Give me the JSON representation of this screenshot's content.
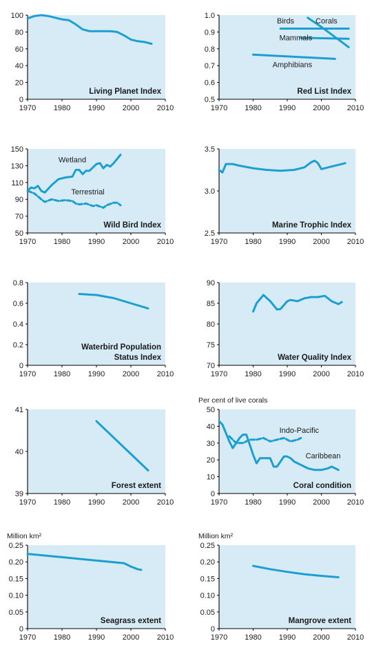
{
  "colors": {
    "panel_fill": "#d6ebf5",
    "line": "#1a9fd0",
    "axis": "#000000",
    "text": "#1a1a1a"
  },
  "chart_data": [
    {
      "type": "line",
      "title": "Living Planet Index",
      "title_lines": [
        "Living Planet Index"
      ],
      "xlim": [
        1970,
        2010
      ],
      "ylim": [
        0,
        100
      ],
      "xticks": [
        "1970",
        "1980",
        "1990",
        "2000",
        "2010"
      ],
      "yticks": [
        "0",
        "20",
        "40",
        "60",
        "80",
        "100"
      ],
      "series": [
        {
          "dashed": false,
          "x": [
            1970,
            1972,
            1974,
            1976,
            1978,
            1980,
            1982,
            1984,
            1986,
            1988,
            1990,
            1992,
            1994,
            1996,
            1998,
            2000,
            2002,
            2004,
            2006
          ],
          "y": [
            96,
            99,
            100,
            99,
            97,
            95,
            94,
            89,
            83,
            81,
            81,
            81,
            81,
            80,
            76,
            71,
            69,
            68,
            66
          ]
        }
      ],
      "annotations": []
    },
    {
      "type": "line",
      "title": "Red List Index",
      "title_lines": [
        "Red List Index"
      ],
      "xlim": [
        1970,
        2010
      ],
      "ylim": [
        0.5,
        1.0
      ],
      "xticks": [
        "1970",
        "1980",
        "1990",
        "2000",
        "2010"
      ],
      "yticks": [
        "0.5",
        "0.6",
        "0.7",
        "0.8",
        "0.9",
        "1.0"
      ],
      "series": [
        {
          "name": "Birds",
          "dashed": false,
          "x": [
            1988,
            2008
          ],
          "y": [
            0.92,
            0.92
          ]
        },
        {
          "name": "Corals",
          "dashed": false,
          "x": [
            1996,
            2000,
            2004,
            2008
          ],
          "y": [
            0.985,
            0.93,
            0.87,
            0.81
          ]
        },
        {
          "name": "Mammals",
          "dashed": false,
          "x": [
            1994,
            2008
          ],
          "y": [
            0.865,
            0.86
          ]
        },
        {
          "name": "Amphibians",
          "dashed": false,
          "x": [
            1980,
            2004
          ],
          "y": [
            0.765,
            0.74
          ]
        }
      ],
      "annotations": [
        {
          "text": "Birds",
          "x": 1989.5,
          "y": 0.95
        },
        {
          "text": "Corals",
          "x": 2001.5,
          "y": 0.95
        },
        {
          "text": "Mammals",
          "x": 1992.5,
          "y": 0.85
        },
        {
          "text": "Amphibians",
          "x": 1991.5,
          "y": 0.69
        }
      ]
    },
    {
      "type": "line",
      "title": "Wild Bird Index",
      "title_lines": [
        "Wild Bird Index"
      ],
      "xlim": [
        1970,
        2010
      ],
      "ylim": [
        50,
        150
      ],
      "xticks": [
        "1970",
        "1980",
        "1990",
        "2000",
        "2010"
      ],
      "yticks": [
        "50",
        "70",
        "90",
        "110",
        "130",
        "150"
      ],
      "series": [
        {
          "name": "Wetland",
          "dashed": false,
          "x": [
            1970,
            1971,
            1972,
            1973,
            1974,
            1975,
            1977,
            1979,
            1981,
            1983,
            1984,
            1985,
            1986,
            1987,
            1988,
            1989,
            1990,
            1991,
            1992,
            1993,
            1994,
            1995,
            1996,
            1997
          ],
          "y": [
            100,
            104,
            103,
            106,
            100,
            98,
            107,
            114,
            116,
            117,
            125,
            125,
            120,
            124,
            124,
            128,
            132,
            133,
            127,
            131,
            129,
            133,
            138,
            143
          ]
        },
        {
          "name": "Terrestrial",
          "dashed": true,
          "x": [
            1970,
            1972,
            1974,
            1975,
            1977,
            1979,
            1981,
            1983,
            1984,
            1985,
            1987,
            1989,
            1990,
            1992,
            1993,
            1995,
            1996,
            1997
          ],
          "y": [
            100,
            97,
            90,
            87,
            90,
            88,
            89,
            88,
            85,
            84,
            85,
            82,
            83,
            80,
            83,
            86,
            86,
            83
          ]
        }
      ],
      "annotations": [
        {
          "text": "Wetland",
          "x": 1983,
          "y": 134
        },
        {
          "text": "Terrestrial",
          "x": 1987.5,
          "y": 96
        }
      ]
    },
    {
      "type": "line",
      "title": "Marine Trophic Index",
      "title_lines": [
        "Marine Trophic Index"
      ],
      "xlim": [
        1970,
        2010
      ],
      "ylim": [
        2.5,
        3.5
      ],
      "xticks": [
        "1970",
        "1980",
        "1990",
        "2000",
        "2010"
      ],
      "yticks": [
        "2.5",
        "3.0",
        "3.5"
      ],
      "series": [
        {
          "dashed": false,
          "x": [
            1970,
            1971,
            1972,
            1974,
            1976,
            1980,
            1984,
            1988,
            1992,
            1995,
            1997,
            1998,
            1999,
            2000,
            2001,
            2003,
            2005,
            2007
          ],
          "y": [
            3.25,
            3.22,
            3.32,
            3.32,
            3.3,
            3.27,
            3.25,
            3.24,
            3.25,
            3.28,
            3.34,
            3.36,
            3.33,
            3.26,
            3.27,
            3.29,
            3.31,
            3.33
          ]
        }
      ],
      "annotations": []
    },
    {
      "type": "line",
      "title": "Waterbird Population Status Index",
      "title_lines": [
        "Waterbird Population",
        "Status Index"
      ],
      "xlim": [
        1970,
        2010
      ],
      "ylim": [
        0,
        0.8
      ],
      "xticks": [
        "1970",
        "1980",
        "1990",
        "2000",
        "2010"
      ],
      "yticks": [
        "0",
        "0.2",
        "0.4",
        "0.6",
        "0.8"
      ],
      "series": [
        {
          "dashed": false,
          "x": [
            1985,
            1990,
            1995,
            2000,
            2005
          ],
          "y": [
            0.69,
            0.68,
            0.65,
            0.6,
            0.55
          ]
        }
      ],
      "annotations": []
    },
    {
      "type": "line",
      "title": "Water Quality Index",
      "title_lines": [
        "Water Quality Index"
      ],
      "xlim": [
        1970,
        2010
      ],
      "ylim": [
        70,
        90
      ],
      "xticks": [
        "1970",
        "1980",
        "1990",
        "2000",
        "2010"
      ],
      "yticks": [
        "70",
        "75",
        "80",
        "85",
        "90"
      ],
      "series": [
        {
          "dashed": false,
          "x": [
            1980,
            1981,
            1982,
            1983,
            1985,
            1987,
            1988,
            1990,
            1991,
            1993,
            1995,
            1997,
            1999,
            2001,
            2003,
            2005,
            2006
          ],
          "y": [
            83,
            85,
            86,
            87,
            85.5,
            83.5,
            83.6,
            85.5,
            85.8,
            85.5,
            86.2,
            86.5,
            86.5,
            86.8,
            85.5,
            84.8,
            85.3
          ]
        }
      ],
      "annotations": []
    },
    {
      "type": "line",
      "title": "Forest extent",
      "title_lines": [
        "Forest extent"
      ],
      "xlim": [
        1970,
        2010
      ],
      "ylim": [
        39,
        41
      ],
      "xticks": [
        "1970",
        "1980",
        "1990",
        "2000",
        "2010"
      ],
      "yticks": [
        "39",
        "40",
        "41"
      ],
      "series": [
        {
          "dashed": false,
          "x": [
            1990,
            2005
          ],
          "y": [
            40.72,
            39.55
          ]
        }
      ],
      "annotations": []
    },
    {
      "type": "line",
      "title": "Coral condition",
      "title_lines": [
        "Coral condition"
      ],
      "ylabel": "Per cent of live corals",
      "xlim": [
        1970,
        2010
      ],
      "ylim": [
        0,
        50
      ],
      "xticks": [
        "1970",
        "1980",
        "1990",
        "2000",
        "2010"
      ],
      "yticks": [
        "0",
        "10",
        "20",
        "30",
        "40",
        "50"
      ],
      "series": [
        {
          "name": "Caribbean",
          "dashed": false,
          "x": [
            1970,
            1971,
            1972,
            1973,
            1974,
            1975,
            1976,
            1977,
            1978,
            1979,
            1980,
            1981,
            1982,
            1983,
            1984,
            1985,
            1986,
            1987,
            1988,
            1989,
            1990,
            1991,
            1992,
            1994,
            1996,
            1998,
            2000,
            2002,
            2003,
            2004,
            2005
          ],
          "y": [
            43,
            41,
            36,
            31,
            27,
            30,
            33,
            35,
            35,
            29,
            23,
            18,
            21,
            21,
            21,
            21,
            16,
            16,
            19,
            22,
            22,
            21,
            19,
            17,
            15,
            14,
            14,
            15,
            16,
            15,
            14
          ]
        },
        {
          "name": "Indo-Pacific",
          "dashed": true,
          "x": [
            1973,
            1975,
            1977,
            1979,
            1981,
            1983,
            1985,
            1987,
            1989,
            1991,
            1993,
            1994
          ],
          "y": [
            34,
            30,
            30,
            32,
            32,
            33,
            31,
            32,
            33,
            31,
            32,
            33
          ]
        }
      ],
      "annotations": [
        {
          "text": "Indo-Pacific",
          "x": 1993.5,
          "y": 36
        },
        {
          "text": "Caribbean",
          "x": 2000.5,
          "y": 21
        }
      ]
    },
    {
      "type": "line",
      "title": "Seagrass extent",
      "title_lines": [
        "Seagrass extent"
      ],
      "ylabel": "Million km²",
      "xlim": [
        1970,
        2010
      ],
      "ylim": [
        0,
        0.25
      ],
      "xticks": [
        "1970",
        "1980",
        "1990",
        "2000",
        "2010"
      ],
      "yticks": [
        "0",
        "0.05",
        "0.10",
        "0.15",
        "0.20",
        "0.25"
      ],
      "series": [
        {
          "dashed": false,
          "x": [
            1970,
            1980,
            1990,
            1998,
            2000,
            2002,
            2003
          ],
          "y": [
            0.224,
            0.214,
            0.204,
            0.196,
            0.186,
            0.178,
            0.176
          ]
        }
      ],
      "annotations": []
    },
    {
      "type": "line",
      "title": "Mangrove extent",
      "title_lines": [
        "Mangrove extent"
      ],
      "ylabel": "Million km²",
      "xlim": [
        1970,
        2010
      ],
      "ylim": [
        0,
        0.25
      ],
      "xticks": [
        "1970",
        "1980",
        "1990",
        "2000",
        "2010"
      ],
      "yticks": [
        "0",
        "0.05",
        "0.10",
        "0.15",
        "0.20",
        "0.25"
      ],
      "series": [
        {
          "dashed": false,
          "x": [
            1980,
            1985,
            1990,
            1995,
            2000,
            2005
          ],
          "y": [
            0.188,
            0.178,
            0.17,
            0.163,
            0.158,
            0.154
          ]
        }
      ],
      "annotations": []
    }
  ]
}
